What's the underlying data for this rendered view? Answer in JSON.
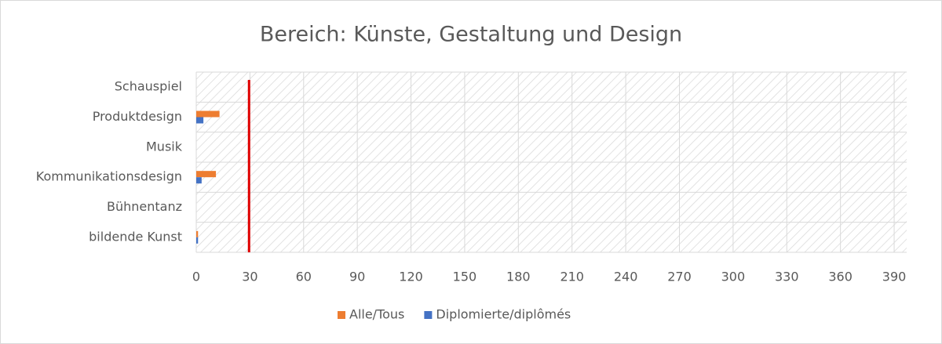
{
  "chart_data": {
    "type": "hbar",
    "title": "Bereich: Künste, Gestaltung und Design",
    "categories": [
      "Schauspiel",
      "Produktdesign",
      "Musik",
      "Kommunikationsdesign",
      "Bühnentanz",
      "bildende Kunst"
    ],
    "series": [
      {
        "name": "Alle/Tous",
        "color": "#ed7d31",
        "values": [
          0,
          13,
          0,
          11,
          0,
          1
        ]
      },
      {
        "name": "Diplomierte/diplômés",
        "color": "#4472c4",
        "values": [
          0,
          4,
          0,
          3,
          0,
          1
        ]
      }
    ],
    "xlim": [
      0,
      397
    ],
    "xticks": [
      0,
      30,
      60,
      90,
      120,
      150,
      180,
      210,
      240,
      270,
      300,
      330,
      360,
      390
    ],
    "grid": true,
    "legend": "bottom",
    "reference_line": {
      "value": 29.5,
      "color": "#e00000"
    }
  }
}
